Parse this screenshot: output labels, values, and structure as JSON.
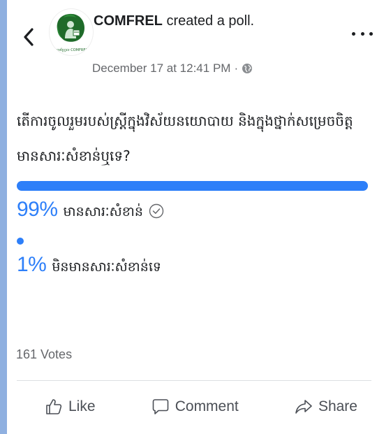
{
  "post": {
    "author": "COMFREL",
    "action": " created a poll.",
    "timestamp": "December 17 at 12:41 PM",
    "separator": "·",
    "privacy_icon": "globe-icon",
    "avatar_caption": "ខុមហ្វ្រែល COMFREL"
  },
  "poll": {
    "question": "តើការចូលរួមរបស់ស្ត្រីក្នុងវិស័យនយោបាយ និងក្នុងថ្នាក់សម្រេចចិត្តមានសារៈសំខាន់ឬទេ?",
    "options": [
      {
        "percent_label": "99%",
        "percent": 99,
        "label": "មានសារៈសំខាន់",
        "selected": true
      },
      {
        "percent_label": "1%",
        "percent": 1,
        "label": "មិនមានសារៈសំខាន់ទេ",
        "selected": false
      }
    ],
    "votes": "161 Votes"
  },
  "actions": {
    "like": "Like",
    "comment": "Comment",
    "share": "Share"
  },
  "colors": {
    "accent": "#2d7ff9",
    "background": "#8fb0e0",
    "text": "#1c1e21",
    "muted": "#65676b"
  }
}
